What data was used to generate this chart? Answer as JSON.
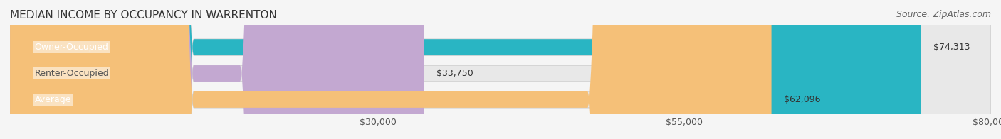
{
  "title": "MEDIAN INCOME BY OCCUPANCY IN WARRENTON",
  "source": "Source: ZipAtlas.com",
  "categories": [
    "Owner-Occupied",
    "Renter-Occupied",
    "Average"
  ],
  "values": [
    74313,
    33750,
    62096
  ],
  "labels": [
    "$74,313",
    "$33,750",
    "$62,096"
  ],
  "bar_colors": [
    "#29b5c3",
    "#c3a8d1",
    "#f5c078"
  ],
  "bar_edge_colors": [
    "#29b5c3",
    "#c3a8d1",
    "#f5c078"
  ],
  "xmin": 0,
  "xmax": 80000,
  "xticks": [
    30000,
    55000,
    80000
  ],
  "xticklabels": [
    "$30,000",
    "$55,000",
    "$80,000"
  ],
  "background_color": "#f5f5f5",
  "bar_background_color": "#e8e8e8",
  "title_fontsize": 11,
  "source_fontsize": 9,
  "label_fontsize": 9,
  "tick_fontsize": 9
}
